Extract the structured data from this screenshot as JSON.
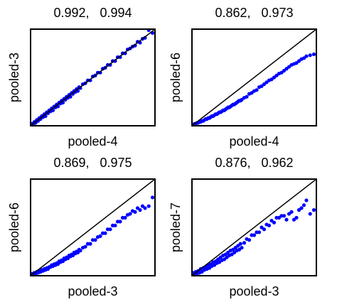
{
  "chart_data": [
    {
      "type": "scatter",
      "title": "0.992,   0.994",
      "xlabel": "pooled-4",
      "ylabel": "pooled-3",
      "xlim": [
        0,
        1
      ],
      "ylim": [
        0,
        1
      ],
      "grid": false,
      "legend": "none",
      "point_color": "#0000ff",
      "line_color": "#000000",
      "diagonal": [
        [
          0,
          0
        ],
        [
          1,
          1
        ]
      ],
      "x": [
        0.01,
        0.02,
        0.03,
        0.04,
        0.05,
        0.06,
        0.07,
        0.08,
        0.09,
        0.1,
        0.11,
        0.12,
        0.13,
        0.14,
        0.15,
        0.16,
        0.17,
        0.18,
        0.19,
        0.2,
        0.21,
        0.22,
        0.23,
        0.24,
        0.25,
        0.26,
        0.27,
        0.28,
        0.29,
        0.3,
        0.31,
        0.32,
        0.33,
        0.34,
        0.35,
        0.36,
        0.37,
        0.38,
        0.39,
        0.4,
        0.42,
        0.44,
        0.46,
        0.48,
        0.5,
        0.52,
        0.54,
        0.56,
        0.58,
        0.6,
        0.62,
        0.64,
        0.66,
        0.68,
        0.7,
        0.72,
        0.74,
        0.76,
        0.78,
        0.8,
        0.82,
        0.84,
        0.86,
        0.88,
        0.9,
        0.92,
        0.95,
        0.98
      ],
      "y": [
        0.02,
        0.01,
        0.04,
        0.03,
        0.06,
        0.05,
        0.08,
        0.07,
        0.1,
        0.09,
        0.12,
        0.1,
        0.14,
        0.13,
        0.16,
        0.15,
        0.18,
        0.16,
        0.2,
        0.19,
        0.22,
        0.2,
        0.24,
        0.23,
        0.26,
        0.24,
        0.28,
        0.27,
        0.3,
        0.29,
        0.32,
        0.3,
        0.34,
        0.33,
        0.36,
        0.35,
        0.38,
        0.36,
        0.4,
        0.39,
        0.43,
        0.44,
        0.47,
        0.47,
        0.51,
        0.52,
        0.55,
        0.55,
        0.59,
        0.6,
        0.63,
        0.63,
        0.67,
        0.67,
        0.71,
        0.71,
        0.75,
        0.75,
        0.79,
        0.8,
        0.82,
        0.83,
        0.87,
        0.86,
        0.9,
        0.91,
        0.99,
        0.96
      ]
    },
    {
      "type": "scatter",
      "title": "0.862,   0.973",
      "xlabel": "pooled-4",
      "ylabel": "pooled-6",
      "xlim": [
        0,
        1
      ],
      "ylim": [
        0,
        1
      ],
      "grid": false,
      "legend": "none",
      "point_color": "#0000ff",
      "line_color": "#000000",
      "diagonal": [
        [
          0,
          0
        ],
        [
          1,
          1
        ]
      ],
      "x": [
        0.01,
        0.02,
        0.03,
        0.04,
        0.05,
        0.06,
        0.07,
        0.08,
        0.09,
        0.1,
        0.11,
        0.12,
        0.13,
        0.14,
        0.15,
        0.16,
        0.17,
        0.18,
        0.19,
        0.2,
        0.21,
        0.22,
        0.23,
        0.24,
        0.25,
        0.26,
        0.27,
        0.28,
        0.29,
        0.3,
        0.31,
        0.32,
        0.33,
        0.34,
        0.35,
        0.36,
        0.37,
        0.38,
        0.39,
        0.4,
        0.42,
        0.44,
        0.46,
        0.48,
        0.5,
        0.52,
        0.54,
        0.56,
        0.58,
        0.6,
        0.62,
        0.64,
        0.66,
        0.68,
        0.7,
        0.72,
        0.74,
        0.76,
        0.78,
        0.8,
        0.82,
        0.84,
        0.86,
        0.88,
        0.9,
        0.92,
        0.95,
        0.98
      ],
      "y": [
        0.01,
        0.02,
        0.02,
        0.03,
        0.03,
        0.04,
        0.04,
        0.05,
        0.05,
        0.06,
        0.07,
        0.07,
        0.08,
        0.08,
        0.09,
        0.1,
        0.1,
        0.11,
        0.12,
        0.12,
        0.13,
        0.14,
        0.14,
        0.15,
        0.16,
        0.16,
        0.17,
        0.18,
        0.19,
        0.19,
        0.2,
        0.21,
        0.22,
        0.22,
        0.23,
        0.24,
        0.25,
        0.26,
        0.26,
        0.27,
        0.29,
        0.3,
        0.33,
        0.34,
        0.36,
        0.37,
        0.4,
        0.41,
        0.43,
        0.45,
        0.47,
        0.48,
        0.5,
        0.52,
        0.54,
        0.55,
        0.57,
        0.59,
        0.61,
        0.63,
        0.64,
        0.65,
        0.67,
        0.69,
        0.7,
        0.72,
        0.73,
        0.74
      ]
    },
    {
      "type": "scatter",
      "title": "0.869,   0.975",
      "xlabel": "pooled-3",
      "ylabel": "pooled-6",
      "xlim": [
        0,
        1
      ],
      "ylim": [
        0,
        1
      ],
      "grid": false,
      "legend": "none",
      "point_color": "#0000ff",
      "line_color": "#000000",
      "diagonal": [
        [
          0,
          0
        ],
        [
          1,
          1
        ]
      ],
      "x": [
        0.01,
        0.02,
        0.03,
        0.04,
        0.05,
        0.06,
        0.07,
        0.08,
        0.09,
        0.1,
        0.11,
        0.12,
        0.13,
        0.14,
        0.15,
        0.16,
        0.17,
        0.18,
        0.19,
        0.2,
        0.21,
        0.22,
        0.23,
        0.24,
        0.25,
        0.26,
        0.27,
        0.28,
        0.29,
        0.3,
        0.31,
        0.32,
        0.33,
        0.34,
        0.35,
        0.36,
        0.37,
        0.38,
        0.39,
        0.4,
        0.42,
        0.44,
        0.46,
        0.48,
        0.5,
        0.52,
        0.54,
        0.56,
        0.58,
        0.6,
        0.62,
        0.64,
        0.66,
        0.68,
        0.7,
        0.72,
        0.74,
        0.76,
        0.78,
        0.8,
        0.82,
        0.84,
        0.86,
        0.88,
        0.9,
        0.92,
        0.95,
        0.98
      ],
      "y": [
        0.02,
        0.01,
        0.03,
        0.02,
        0.04,
        0.03,
        0.05,
        0.04,
        0.06,
        0.05,
        0.07,
        0.06,
        0.08,
        0.07,
        0.09,
        0.09,
        0.11,
        0.1,
        0.12,
        0.11,
        0.13,
        0.12,
        0.15,
        0.14,
        0.16,
        0.15,
        0.18,
        0.17,
        0.19,
        0.18,
        0.21,
        0.2,
        0.22,
        0.21,
        0.24,
        0.23,
        0.25,
        0.24,
        0.27,
        0.26,
        0.29,
        0.3,
        0.33,
        0.33,
        0.37,
        0.37,
        0.4,
        0.41,
        0.44,
        0.44,
        0.48,
        0.48,
        0.52,
        0.52,
        0.56,
        0.56,
        0.6,
        0.6,
        0.63,
        0.64,
        0.67,
        0.66,
        0.7,
        0.68,
        0.72,
        0.7,
        0.72,
        0.81
      ]
    },
    {
      "type": "scatter",
      "title": "0.876,   0.962",
      "xlabel": "pooled-3",
      "ylabel": "pooled-7",
      "xlim": [
        0,
        1
      ],
      "ylim": [
        0,
        1
      ],
      "grid": false,
      "legend": "none",
      "point_color": "#0000ff",
      "line_color": "#000000",
      "diagonal": [
        [
          0,
          0
        ],
        [
          1,
          1
        ]
      ],
      "x": [
        0.01,
        0.02,
        0.03,
        0.04,
        0.05,
        0.06,
        0.07,
        0.08,
        0.09,
        0.1,
        0.11,
        0.12,
        0.13,
        0.14,
        0.15,
        0.16,
        0.17,
        0.18,
        0.19,
        0.2,
        0.21,
        0.22,
        0.23,
        0.24,
        0.25,
        0.26,
        0.27,
        0.28,
        0.29,
        0.3,
        0.31,
        0.32,
        0.33,
        0.34,
        0.35,
        0.36,
        0.37,
        0.38,
        0.39,
        0.4,
        0.42,
        0.44,
        0.46,
        0.48,
        0.5,
        0.52,
        0.54,
        0.56,
        0.58,
        0.6,
        0.62,
        0.64,
        0.66,
        0.68,
        0.7,
        0.72,
        0.74,
        0.76,
        0.78,
        0.8,
        0.82,
        0.84,
        0.86,
        0.88,
        0.9,
        0.92,
        0.95,
        0.98
      ],
      "y": [
        0.03,
        0.01,
        0.04,
        0.02,
        0.05,
        0.03,
        0.07,
        0.04,
        0.08,
        0.06,
        0.09,
        0.07,
        0.11,
        0.08,
        0.12,
        0.1,
        0.14,
        0.11,
        0.15,
        0.13,
        0.17,
        0.14,
        0.19,
        0.16,
        0.21,
        0.17,
        0.22,
        0.19,
        0.24,
        0.21,
        0.26,
        0.22,
        0.27,
        0.24,
        0.29,
        0.26,
        0.31,
        0.27,
        0.33,
        0.29,
        0.34,
        0.38,
        0.37,
        0.42,
        0.42,
        0.45,
        0.45,
        0.5,
        0.48,
        0.53,
        0.52,
        0.57,
        0.55,
        0.6,
        0.6,
        0.62,
        0.62,
        0.58,
        0.64,
        0.66,
        0.58,
        0.6,
        0.68,
        0.7,
        0.73,
        0.78,
        0.64,
        0.68
      ]
    }
  ]
}
